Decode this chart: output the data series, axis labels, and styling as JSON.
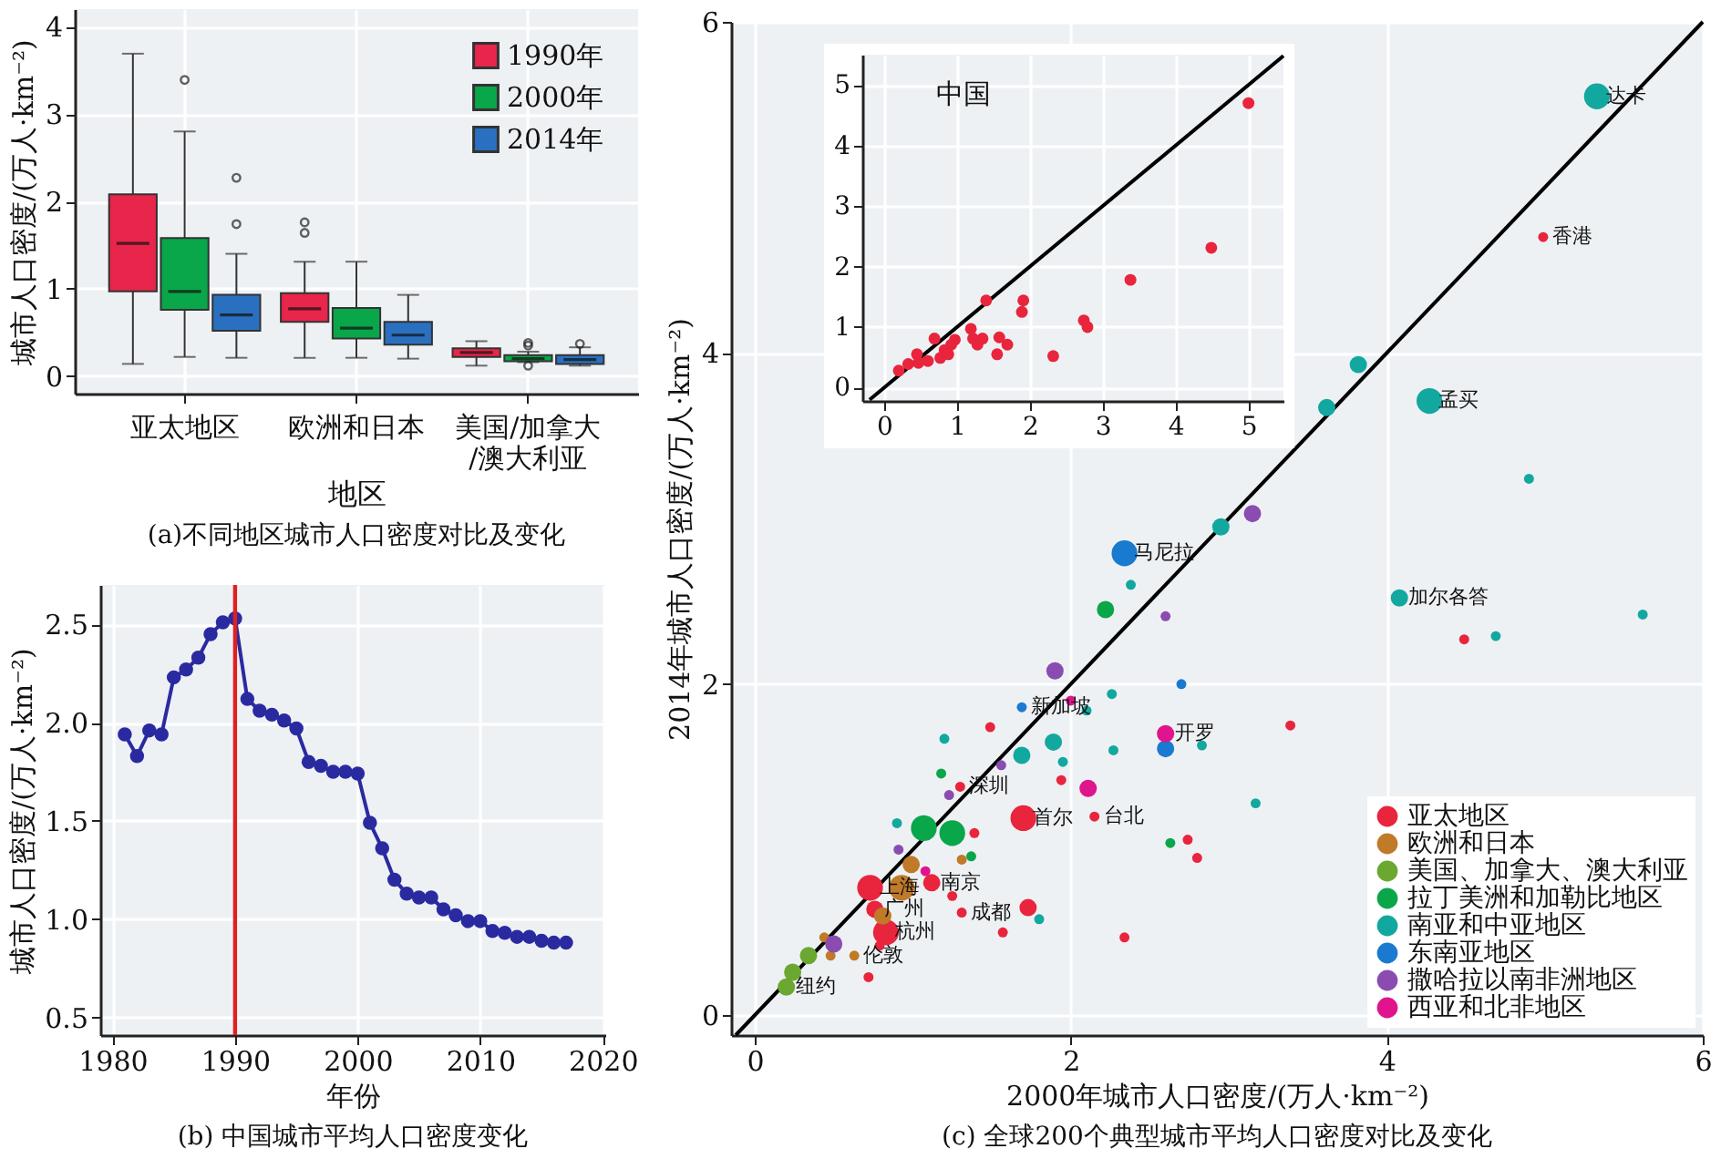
{
  "chart_data": [
    {
      "type": "box",
      "title": "(a)不同地区城市人口密度对比及变化",
      "xlabel": "地区",
      "ylabel": "城市人口密度/(万人·km⁻²)",
      "categories": [
        "亚太地区",
        "欧洲和日本",
        "美国/加拿大/澳大利亚"
      ],
      "ylim": [
        -0.2,
        4.2
      ],
      "yticks": [
        0,
        1,
        2,
        3,
        4
      ],
      "grid": true,
      "legend": "top right",
      "series": [
        {
          "name": "1990年",
          "color": "#e8254a",
          "boxes": [
            {
              "low": 0.14,
              "q1": 0.97,
              "median": 1.52,
              "q3": 2.08,
              "high": 3.69
            },
            {
              "low": 0.21,
              "q1": 0.62,
              "median": 0.77,
              "q3": 0.95,
              "high": 1.31,
              "outliers": [
                1.64,
                1.76
              ]
            },
            {
              "low": 0.12,
              "q1": 0.22,
              "median": 0.27,
              "q3": 0.32,
              "high": 0.4
            }
          ]
        },
        {
          "name": "2000年",
          "color": "#0aa64a",
          "boxes": [
            {
              "low": 0.22,
              "q1": 0.76,
              "median": 0.97,
              "q3": 1.58,
              "high": 2.8,
              "outliers": [
                3.39
              ]
            },
            {
              "low": 0.21,
              "q1": 0.43,
              "median": 0.55,
              "q3": 0.78,
              "high": 1.31
            },
            {
              "low": 0.16,
              "q1": 0.17,
              "median": 0.2,
              "q3": 0.24,
              "high": 0.28,
              "outliers": [
                0.12,
                0.35,
                0.38
              ]
            }
          ]
        },
        {
          "name": "2014年",
          "color": "#2a70c0",
          "boxes": [
            {
              "low": 0.21,
              "q1": 0.52,
              "median": 0.7,
              "q3": 0.93,
              "high": 1.4,
              "outliers": [
                1.74,
                2.27
              ]
            },
            {
              "low": 0.2,
              "q1": 0.36,
              "median": 0.47,
              "q3": 0.62,
              "high": 0.93
            },
            {
              "low": 0.12,
              "q1": 0.14,
              "median": 0.19,
              "q3": 0.24,
              "high": 0.33,
              "outliers": [
                0.37
              ]
            }
          ]
        }
      ]
    },
    {
      "type": "line",
      "title": "(b) 中国城市平均人口密度变化",
      "xlabel": "年份",
      "ylabel": "城市人口密度/(万人·km⁻²)",
      "x": [
        1981,
        1982,
        1983,
        1984,
        1985,
        1986,
        1987,
        1988,
        1989,
        1990,
        1991,
        1992,
        1993,
        1994,
        1995,
        1996,
        1997,
        1998,
        1999,
        2000,
        2001,
        2002,
        2003,
        2004,
        2005,
        2006,
        2007,
        2008,
        2009,
        2010,
        2011,
        2012,
        2013,
        2014,
        2015,
        2016,
        2017
      ],
      "xlim": [
        1979,
        2020.2
      ],
      "xticks": [
        1980,
        1990,
        2000,
        2010,
        2020
      ],
      "ylim": [
        0.41,
        2.7
      ],
      "yticks": [
        0.5,
        {
          "value": 1,
          "label": "1.0"
        },
        1.5,
        {
          "value": 2,
          "label": "2.0"
        },
        2.5
      ],
      "grid": true,
      "marker": "circle",
      "series": [
        {
          "color": "#2a2aa0",
          "values": [
            1.94,
            1.83,
            1.96,
            1.94,
            2.23,
            2.27,
            2.33,
            2.45,
            2.51,
            2.53,
            2.12,
            2.06,
            2.04,
            2.01,
            1.97,
            1.8,
            1.78,
            1.75,
            1.75,
            1.74,
            1.49,
            1.36,
            1.2,
            1.13,
            1.11,
            1.11,
            1.05,
            1.02,
            0.99,
            0.99,
            0.94,
            0.93,
            0.91,
            0.91,
            0.89,
            0.88,
            0.88
          ]
        }
      ],
      "ref_lines": [
        {
          "axis": "x",
          "value": 1990,
          "color": "#e02020"
        }
      ]
    },
    {
      "type": "bubble",
      "title": "(c) 全球200个典型城市平均人口密度对比及变化",
      "xlabel": "2000年城市人口密度/(万人·km⁻²)",
      "ylabel": "2014年城市人口密度/(万人·km⁻²)",
      "xlim": [
        -0.15,
        6
      ],
      "ylim": [
        -0.12,
        6
      ],
      "xticks": [
        0,
        2,
        4,
        6
      ],
      "yticks": [
        0,
        2,
        4,
        6
      ],
      "grid": true,
      "legend": "bottom right",
      "series": [
        {
          "name": "亚太地区",
          "color": "#e8253c",
          "x": [
            1.49,
            1.94,
            1.7,
            2.74,
            2.8,
            1.39,
            1.25,
            0.73,
            1.73,
            1.31,
            0.83,
            1.57,
            2.34,
            0.72,
            0.79,
            4.99,
            4.49,
            3.39,
            1.3,
            2.15,
            1.12,
            0.76
          ],
          "values": [
            1.74,
            1.42,
            1.19,
            1.06,
            0.95,
            1.1,
            0.72,
            0.77,
            0.65,
            0.62,
            0.5,
            0.5,
            0.47,
            0.23,
            0.42,
            4.7,
            2.27,
            1.75,
            1.38,
            1.2,
            0.8,
            0.64
          ],
          "sizes": [
            0.15,
            0.15,
            1,
            0.15,
            0.15,
            0.15,
            0.15,
            1,
            0.45,
            0.15,
            1,
            0.15,
            0.15,
            0.15,
            0.15,
            0.15,
            0.15,
            0.15,
            0.15,
            0.15,
            0.45,
            0.45
          ]
        },
        {
          "name": "欧洲和日本",
          "color": "#c07a28",
          "x": [
            0.99,
            1.31,
            0.93,
            0.81,
            0.63,
            0.44,
            0.48
          ],
          "values": [
            0.91,
            0.94,
            0.77,
            0.6,
            0.36,
            0.47,
            0.36
          ],
          "sizes": [
            0.45,
            0.15,
            1,
            0.45,
            0.15,
            0.15,
            0.15
          ]
        },
        {
          "name": "美国、加拿大、澳大利亚",
          "color": "#6aa832",
          "x": [
            0.34,
            0.24,
            0.2
          ],
          "values": [
            0.36,
            0.26,
            0.17
          ],
          "sizes": [
            0.45,
            0.45,
            0.45
          ]
        },
        {
          "name": "拉丁美洲和加勒比地区",
          "color": "#0aa64a",
          "x": [
            2.22,
            1.18,
            1.07,
            1.25,
            2.63,
            1.37
          ],
          "values": [
            2.45,
            1.46,
            1.13,
            1.1,
            1.04,
            0.96
          ],
          "sizes": [
            0.45,
            0.15,
            1,
            1,
            0.15,
            0.15
          ]
        },
        {
          "name": "南亚和中亚地区",
          "color": "#12a8a0",
          "x": [
            2.95,
            2.38,
            2.26,
            2.1,
            2.83,
            1.89,
            1.69,
            1.95,
            2.27,
            1.2,
            0.9,
            1.8,
            3.17,
            5.33,
            3.82,
            3.62,
            4.27,
            4.9,
            4.08,
            4.69,
            5.62
          ],
          "values": [
            2.95,
            2.6,
            1.94,
            1.84,
            1.63,
            1.65,
            1.57,
            1.53,
            1.6,
            1.67,
            1.16,
            0.58,
            1.28,
            5.55,
            3.93,
            3.67,
            3.71,
            3.24,
            2.52,
            2.29,
            2.42
          ],
          "sizes": [
            0.45,
            0.15,
            0.15,
            0.15,
            0.15,
            0.45,
            0.45,
            0.15,
            0.15,
            0.15,
            0.15,
            0.15,
            0.15,
            1,
            0.45,
            0.45,
            1,
            0.15,
            0.45,
            0.15,
            0.15
          ]
        },
        {
          "name": "东南亚地区",
          "color": "#1a7ad0",
          "x": [
            2.34,
            2.7,
            1.69,
            2.6
          ],
          "values": [
            2.79,
            2.0,
            1.86,
            1.61
          ],
          "sizes": [
            1,
            0.15,
            0.15,
            0.45
          ]
        },
        {
          "name": "撒哈拉以南非洲地区",
          "color": "#8a4cb0",
          "x": [
            3.15,
            2.6,
            1.9,
            1.56,
            1.23,
            0.91,
            0.5
          ],
          "values": [
            3.03,
            2.41,
            2.08,
            1.51,
            1.33,
            1.0,
            0.43
          ],
          "sizes": [
            0.45,
            0.15,
            0.45,
            0.15,
            0.15,
            0.15,
            0.45
          ]
        },
        {
          "name": "西亚和北非地区",
          "color": "#e0148c",
          "x": [
            2.0,
            2.6,
            2.11,
            1.08
          ],
          "values": [
            1.9,
            1.7,
            1.37,
            0.87
          ],
          "sizes": [
            0.15,
            0.45,
            0.45,
            0.15
          ]
        },
        {
          "type": "line",
          "color": "#000000",
          "x": [
            -0.12,
            6
          ],
          "values": [
            -0.12,
            6
          ]
        }
      ],
      "annotations": [
        {
          "text": "达卡",
          "x": 5.33,
          "y": 5.55
        },
        {
          "text": "香港",
          "x": 4.99,
          "y": 4.7
        },
        {
          "text": "孟买",
          "x": 4.27,
          "y": 3.71
        },
        {
          "text": "加尔各答",
          "x": 4.08,
          "y": 2.52
        },
        {
          "text": "马尼拉",
          "x": 2.34,
          "y": 2.79
        },
        {
          "text": "新加坡",
          "x": 1.69,
          "y": 1.86
        },
        {
          "text": "开罗",
          "x": 2.6,
          "y": 1.7
        },
        {
          "text": "深圳",
          "x": 1.3,
          "y": 1.38
        },
        {
          "text": "首尔",
          "x": 1.7,
          "y": 1.19
        },
        {
          "text": "台北",
          "x": 2.15,
          "y": 1.2
        },
        {
          "text": "成都",
          "x": 1.31,
          "y": 0.62
        },
        {
          "text": "上海",
          "x": 0.73,
          "y": 0.77
        },
        {
          "text": "南京",
          "x": 1.12,
          "y": 0.8
        },
        {
          "text": "伦敦",
          "x": 0.63,
          "y": 0.36
        },
        {
          "text": "广州",
          "x": 0.76,
          "y": 0.64
        },
        {
          "text": "杭州",
          "x": 0.83,
          "y": 0.5
        },
        {
          "text": "纽约",
          "x": 0.2,
          "y": 0.17
        }
      ]
    },
    {
      "type": "scatter",
      "title": "中国",
      "xlim": [
        -0.3,
        5.48
      ],
      "ylim": [
        -0.22,
        5.5
      ],
      "xticks": [
        0,
        1,
        2,
        3,
        4,
        5
      ],
      "yticks": [
        0,
        1,
        2,
        3,
        4,
        5
      ],
      "grid": true,
      "series": [
        {
          "color": "#e8253c",
          "x": [
            5.0,
            4.49,
            3.38,
            2.74,
            2.79,
            2.32,
            1.91,
            1.89,
            1.69,
            1.58,
            1.55,
            1.4,
            1.35,
            1.19,
            1.28,
            1.22,
            0.97,
            0.92,
            0.83,
            0.69,
            0.77,
            0.88,
            0.6,
            0.45,
            0.47,
            0.2,
            0.33
          ],
          "values": [
            4.7,
            2.31,
            1.78,
            1.11,
            1.0,
            0.52,
            1.44,
            1.25,
            0.71,
            0.83,
            0.55,
            1.44,
            0.81,
            0.97,
            0.71,
            0.81,
            0.79,
            0.71,
            0.62,
            0.81,
            0.49,
            0.55,
            0.44,
            0.55,
            0.41,
            0.28,
            0.39
          ]
        },
        {
          "type": "line",
          "color": "#000000",
          "x": [
            -0.2,
            5.48
          ],
          "values": [
            -0.2,
            5.48
          ]
        }
      ]
    }
  ]
}
